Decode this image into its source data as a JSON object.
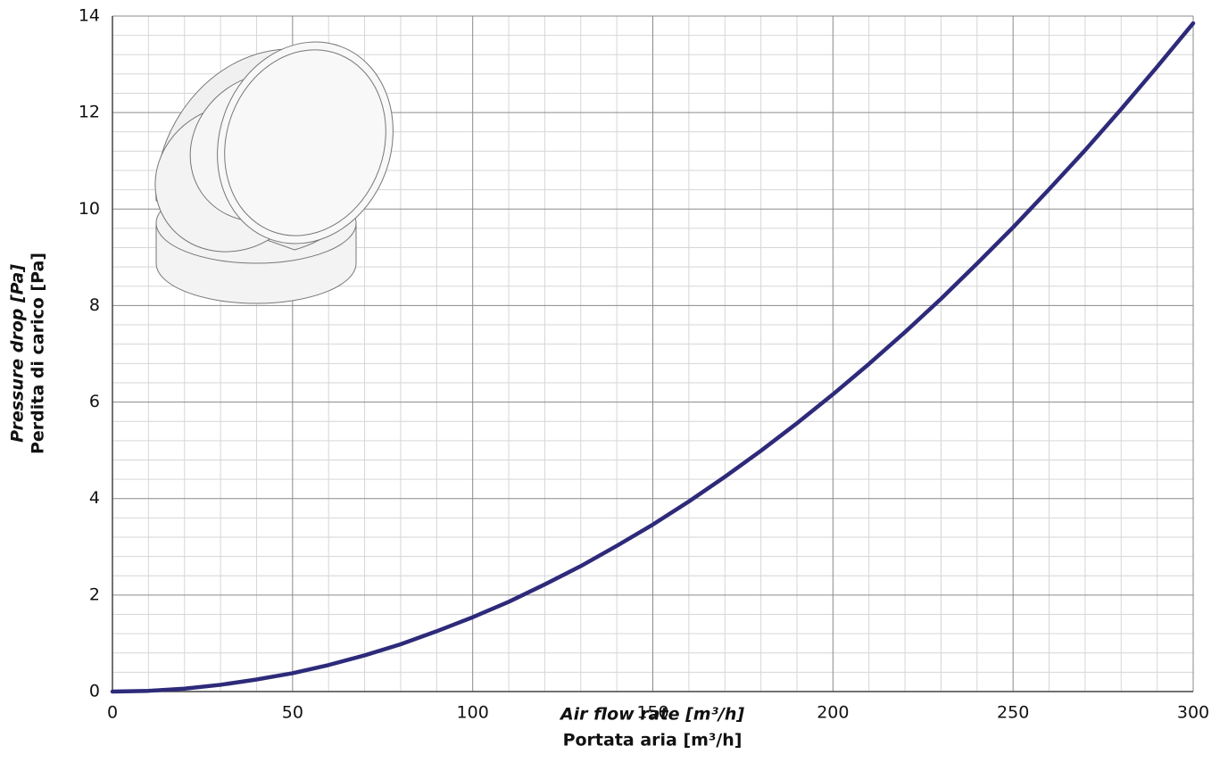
{
  "chart_data": {
    "type": "line",
    "x_label": "Air flow rate [m³/h]",
    "x_label_2": "Portata aria [m³/h]",
    "y_label": "Pressure drop [Pa]",
    "y_label_2": "Perdita di carico [Pa]",
    "x": [
      0,
      10,
      20,
      30,
      40,
      50,
      60,
      70,
      80,
      90,
      100,
      110,
      120,
      130,
      140,
      150,
      160,
      170,
      180,
      190,
      200,
      210,
      220,
      230,
      240,
      250,
      260,
      270,
      280,
      290,
      300
    ],
    "series": [
      {
        "name": null,
        "color": "#2e2a7a",
        "values": [
          0,
          0.015,
          0.06,
          0.14,
          0.25,
          0.38,
          0.55,
          0.75,
          0.98,
          1.25,
          1.54,
          1.86,
          2.22,
          2.6,
          3.02,
          3.46,
          3.94,
          4.45,
          4.99,
          5.56,
          6.16,
          6.79,
          7.45,
          8.14,
          8.87,
          9.62,
          10.41,
          11.22,
          12.07,
          12.95,
          13.85
        ]
      }
    ],
    "xlim": [
      0,
      300
    ],
    "xticks": [
      0,
      50,
      100,
      150,
      200,
      250,
      300
    ],
    "ylim": [
      0,
      14
    ],
    "yticks": [
      0,
      2,
      4,
      6,
      8,
      10,
      12,
      14
    ],
    "grid": true,
    "minor_divisions": 5
  }
}
